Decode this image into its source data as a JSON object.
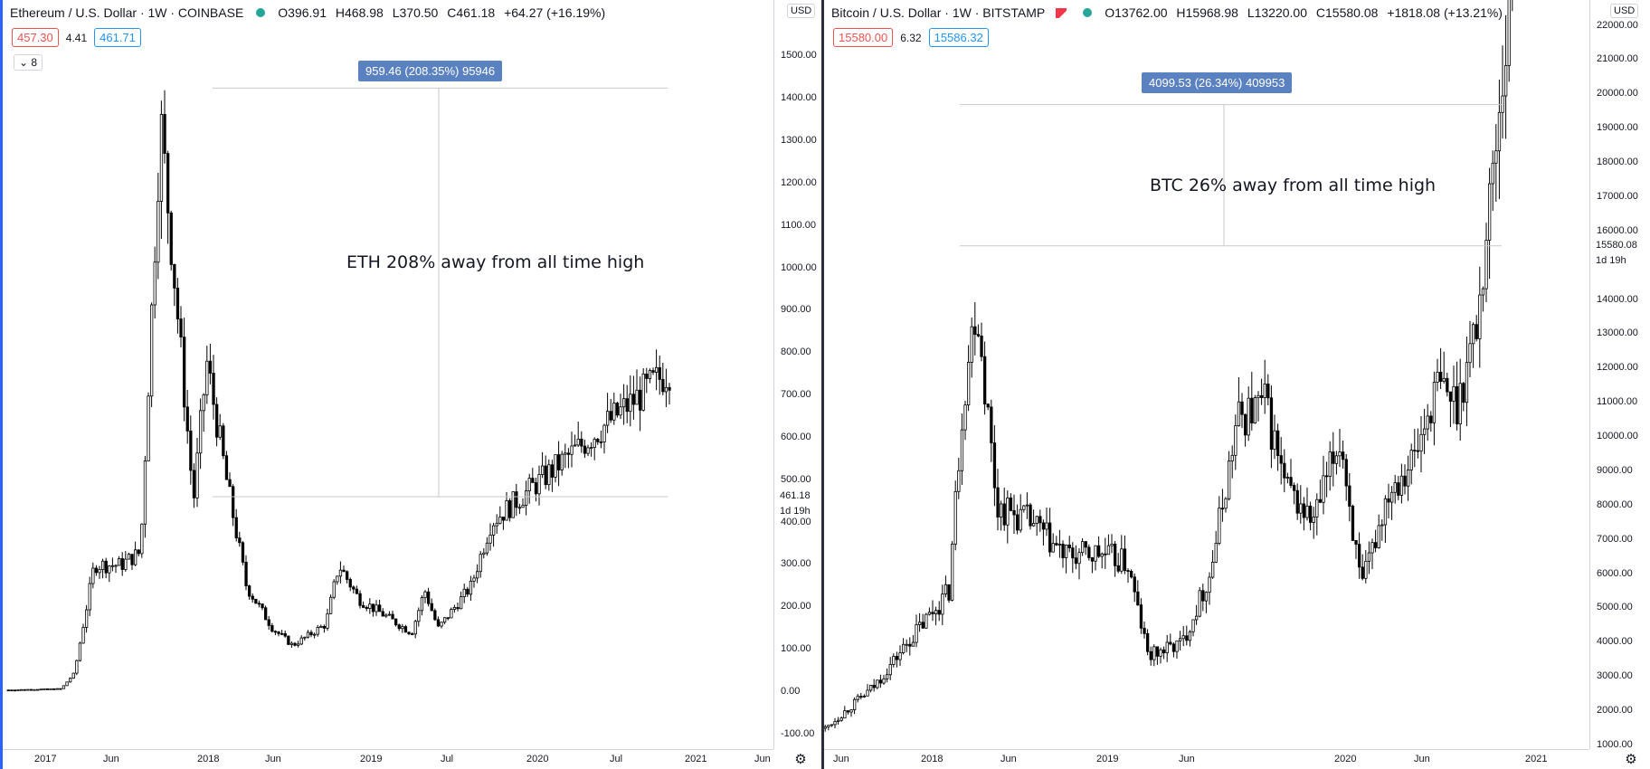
{
  "left": {
    "symbol": "Ethereum / U.S. Dollar · 1W · COINBASE",
    "ohlc": {
      "open": "O396.91",
      "high": "H468.98",
      "low": "L370.50",
      "close": "C461.18",
      "change": "+64.27 (+16.19%)"
    },
    "bid": "457.30",
    "spread": "4.41",
    "ask": "461.71",
    "collapse_label": "8",
    "currency": "USD",
    "last_price": "461.18",
    "timer": "1d 19h",
    "measure_label": "959.46 (208.35%) 95946",
    "annotation": "ETH 208% away from all time high",
    "price_labels": [
      "1500.00",
      "1400.00",
      "1300.00",
      "1200.00",
      "1100.00",
      "1000.00",
      "900.00",
      "800.00",
      "700.00",
      "600.00",
      "500.00",
      "400.00",
      "300.00",
      "200.00",
      "100.00",
      "0.00",
      "-100.00"
    ],
    "time_labels": [
      "2017",
      "Jun",
      "2018",
      "Jun",
      "2019",
      "Jul",
      "2020",
      "Jul",
      "2021",
      "Jun"
    ]
  },
  "right": {
    "symbol": "Bitcoin / U.S. Dollar · 1W · BITSTAMP",
    "ohlc": {
      "open": "O13762.00",
      "high": "H15968.98",
      "low": "L13220.00",
      "close": "C15580.08",
      "change": "+1818.08 (+13.21%)"
    },
    "bid": "15580.00",
    "spread": "6.32",
    "ask": "15586.32",
    "currency": "USD",
    "last_price": "15580.08",
    "timer": "1d 19h",
    "measure_label": "4099.53 (26.34%) 409953",
    "annotation": "BTC 26% away from all time high",
    "price_labels": [
      "22000.00",
      "21000.00",
      "20000.00",
      "19000.00",
      "18000.00",
      "17000.00",
      "16000.00",
      "14000.00",
      "13000.00",
      "12000.00",
      "11000.00",
      "10000.00",
      "9000.00",
      "8000.00",
      "7000.00",
      "6000.00",
      "5000.00",
      "4000.00",
      "3000.00",
      "2000.00",
      "1000.00"
    ],
    "time_labels": [
      "Jun",
      "2018",
      "Jun",
      "2019",
      "Jun",
      "2020",
      "Jun",
      "2021"
    ]
  }
}
